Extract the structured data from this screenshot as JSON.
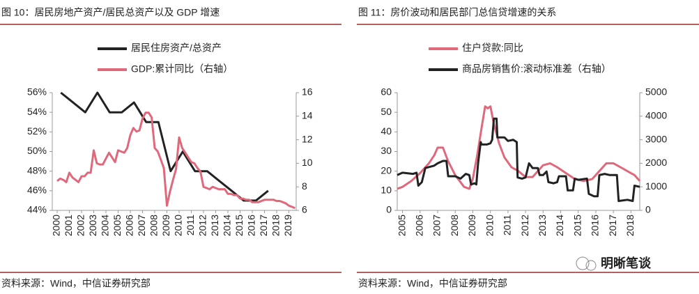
{
  "chart_data": [
    {
      "type": "line",
      "title": "图 10：居民房地产资产/居民总资产以及 GDP 增速",
      "source": "资料来源：Wind，中信证券研究部",
      "legend": "top",
      "xlim": [
        1999.6,
        2019.6
      ],
      "xticks": [
        2000,
        2001,
        2002,
        2003,
        2004,
        2005,
        2006,
        2007,
        2008,
        2009,
        2010,
        2011,
        2012,
        2013,
        2014,
        2015,
        2016,
        2017,
        2018,
        2019
      ],
      "ylim": [
        44,
        56
      ],
      "yticks": [
        {
          "value": 44,
          "label": "44%"
        },
        {
          "value": 46,
          "label": "46%"
        },
        {
          "value": 48,
          "label": "48%"
        },
        {
          "value": 50,
          "label": "50%"
        },
        {
          "value": 52,
          "label": "52%"
        },
        {
          "value": 54,
          "label": "54%"
        },
        {
          "value": 56,
          "label": "56%"
        }
      ],
      "y2lim": [
        6,
        16
      ],
      "y2ticks": [
        6,
        8,
        10,
        12,
        14,
        16
      ],
      "series": [
        {
          "name": "居民住房资产/总资产",
          "color": "#222222",
          "x": [
            2000.3,
            2001.3,
            2002.3,
            2003.3,
            2004.3,
            2005.3,
            2006.3,
            2007.3,
            2008.3,
            2009.3,
            2010.3,
            2011.3,
            2012.3,
            2013.3,
            2014.3,
            2015.3,
            2016.3,
            2017.3
          ],
          "values": [
            56,
            55,
            54,
            56,
            54,
            54,
            55,
            53,
            53,
            48,
            50,
            48,
            48,
            47,
            46,
            45,
            45,
            46
          ]
        },
        {
          "name": "GDP:累计同比（右轴）",
          "color": "#e0687b",
          "axis": "y2",
          "x": [
            2000,
            2000.25,
            2000.5,
            2000.75,
            2001,
            2001.25,
            2001.5,
            2001.75,
            2002,
            2002.25,
            2002.5,
            2002.75,
            2003,
            2003.25,
            2003.5,
            2003.75,
            2004,
            2004.25,
            2004.5,
            2004.75,
            2005,
            2005.25,
            2005.5,
            2005.75,
            2006,
            2006.25,
            2006.5,
            2006.75,
            2007,
            2007.25,
            2007.5,
            2007.75,
            2008,
            2008.25,
            2008.5,
            2008.75,
            2009,
            2009.25,
            2009.5,
            2009.75,
            2010,
            2010.25,
            2010.5,
            2010.75,
            2011,
            2011.25,
            2011.5,
            2011.75,
            2012,
            2012.25,
            2012.5,
            2012.75,
            2013,
            2013.25,
            2013.5,
            2013.75,
            2014,
            2014.25,
            2014.5,
            2014.75,
            2015,
            2015.25,
            2015.5,
            2015.75,
            2016,
            2016.25,
            2016.5,
            2016.75,
            2017,
            2017.25,
            2017.5,
            2017.75,
            2018,
            2018.25,
            2018.5,
            2018.75,
            2019,
            2019.25,
            2019.5
          ],
          "values": [
            8.5,
            8.7,
            8.6,
            8.4,
            9.2,
            8.8,
            8.6,
            8.4,
            8.9,
            8.9,
            9.2,
            9.2,
            11.1,
            10.0,
            9.9,
            9.9,
            10.4,
            10.9,
            10.5,
            10.1,
            11.1,
            11.0,
            10.9,
            11.3,
            12.4,
            13.0,
            12.7,
            12.8,
            13.8,
            14.3,
            14.3,
            13.9,
            11.3,
            11.0,
            10.3,
            9.6,
            6.4,
            7.6,
            8.6,
            9.5,
            12.2,
            11.3,
            10.9,
            10.5,
            10.1,
            10.0,
            9.6,
            9.3,
            8.0,
            7.9,
            7.8,
            8.0,
            7.9,
            7.8,
            7.8,
            7.8,
            7.4,
            7.4,
            7.3,
            7.3,
            7.0,
            7.0,
            6.9,
            6.9,
            6.7,
            6.7,
            6.7,
            6.8,
            6.9,
            6.9,
            6.9,
            6.9,
            6.8,
            6.8,
            6.7,
            6.6,
            6.4,
            6.3,
            6.2
          ]
        }
      ]
    },
    {
      "type": "line",
      "title": "图 11：房价波动和居民部门总信贷增速的关系",
      "source": "资料来源：Wind，中信证券研究部",
      "watermark": "明晰笔谈",
      "legend": "top",
      "xlim": [
        2004.7,
        2018.5
      ],
      "xticks": [
        2005,
        2006,
        2007,
        2008,
        2009,
        2010,
        2011,
        2012,
        2013,
        2014,
        2015,
        2016,
        2017,
        2018
      ],
      "ylim": [
        0,
        60
      ],
      "yticks": [
        0,
        10,
        20,
        30,
        40,
        50,
        60
      ],
      "y2lim": [
        0,
        5000
      ],
      "y2ticks": [
        0,
        1000,
        2000,
        3000,
        4000,
        5000
      ],
      "series": [
        {
          "name": "住户贷款:同比",
          "color": "#e0687b",
          "x": [
            2004.7,
            2005,
            2005.5,
            2006,
            2006.5,
            2006.8,
            2007,
            2007.3,
            2007.6,
            2008,
            2008.5,
            2008.8,
            2009,
            2009.25,
            2009.5,
            2009.7,
            2009.85,
            2010,
            2010.2,
            2010.5,
            2010.8,
            2011.2,
            2011.6,
            2012,
            2012.4,
            2012.8,
            2013,
            2013.4,
            2013.8,
            2014.3,
            2014.8,
            2015.3,
            2015.8,
            2016.3,
            2016.6,
            2017,
            2017.4,
            2017.8,
            2018.2,
            2018.5
          ],
          "values": [
            11,
            12,
            15,
            19,
            24,
            28,
            32,
            32,
            25,
            18,
            12,
            11,
            16,
            28,
            42,
            53,
            52,
            53,
            44,
            34,
            27,
            22,
            20,
            17,
            17,
            21,
            23,
            24,
            22,
            19,
            16,
            15,
            16,
            21,
            24,
            24,
            22,
            20,
            18,
            15
          ]
        },
        {
          "name": "商品房销售价:滚动标准差（右轴）",
          "color": "#222222",
          "axis": "y2",
          "x": [
            2004.7,
            2005,
            2005.6,
            2005.8,
            2005.9,
            2006.1,
            2006.3,
            2006.8,
            2007,
            2007.3,
            2007.5,
            2007.6,
            2008,
            2008.3,
            2008.6,
            2008.8,
            2008.9,
            2009.1,
            2009.2,
            2009.3,
            2009.45,
            2009.5,
            2009.8,
            2010,
            2010.1,
            2010.2,
            2010.35,
            2010.4,
            2010.8,
            2011,
            2011.3,
            2011.5,
            2011.55,
            2011.8,
            2012,
            2012.2,
            2012.4,
            2012.7,
            2012.8,
            2013,
            2013.2,
            2013.3,
            2013.6,
            2013.8,
            2013.9,
            2014.3,
            2014.4,
            2014.7,
            2014.8,
            2015,
            2015.5,
            2015.6,
            2015.9,
            2016.1,
            2016.2,
            2016.5,
            2016.8,
            2017.2,
            2017.3,
            2017.8,
            2018.1,
            2018.2,
            2018.5
          ],
          "values": [
            1500,
            1600,
            1550,
            1600,
            1050,
            1200,
            1800,
            1900,
            2000,
            2100,
            2100,
            1450,
            1450,
            1350,
            1550,
            1500,
            1100,
            1150,
            1100,
            2000,
            2900,
            2800,
            2800,
            2850,
            3000,
            3900,
            3900,
            3100,
            3100,
            2950,
            3000,
            2900,
            1400,
            1350,
            1400,
            2000,
            1800,
            1800,
            1500,
            1500,
            1650,
            1200,
            1150,
            1200,
            1450,
            1450,
            850,
            850,
            1350,
            1300,
            1350,
            700,
            600,
            600,
            1500,
            1550,
            1500,
            1500,
            400,
            450,
            400,
            1050,
            1000
          ]
        }
      ]
    }
  ]
}
